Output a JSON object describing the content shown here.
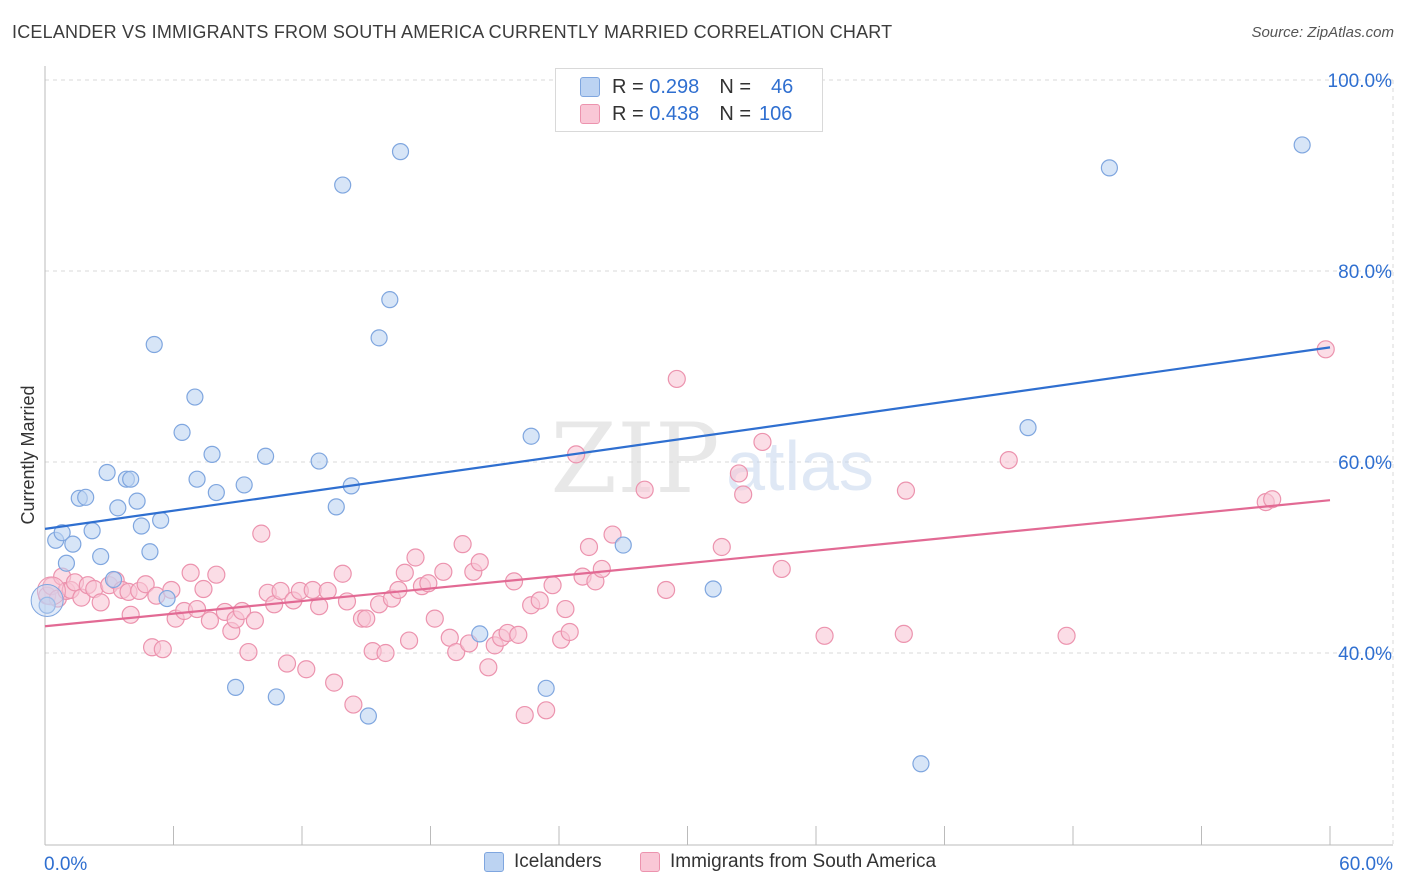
{
  "title": "ICELANDER VS IMMIGRANTS FROM SOUTH AMERICA CURRENTLY MARRIED CORRELATION CHART",
  "source": "Source: ZipAtlas.com",
  "legend": {
    "rows": [
      {
        "r_label": "R =",
        "r_value": "0.298",
        "n_label": "N =",
        "n_value": "46"
      },
      {
        "r_label": "R =",
        "r_value": "0.438",
        "n_label": "N =",
        "n_value": "106"
      }
    ]
  },
  "bottom_legend": {
    "series1": "Icelanders",
    "series2": "Immigrants from South America"
  },
  "colors": {
    "blue": "#2f6fd0",
    "blue_fill": "#bcd3f2",
    "pink": "#e26a94",
    "pink_fill": "#f9c7d6",
    "grid": "#d8d8d8"
  },
  "chart_data": {
    "type": "scatter",
    "title": "ICELANDER VS IMMIGRANTS FROM SOUTH AMERICA CURRENTLY MARRIED CORRELATION CHART",
    "xlabel": "",
    "ylabel": "Currently Married",
    "xlim": [
      0,
      60
    ],
    "ylim": [
      20,
      102
    ],
    "x_tick_labels": [
      "0.0%",
      "60.0%"
    ],
    "y_ticks": [
      40,
      60,
      80,
      100
    ],
    "y_tick_labels": [
      "40.0%",
      "60.0%",
      "80.0%",
      "100.0%"
    ],
    "watermark": "ZIPatlas",
    "series": [
      {
        "name": "Icelanders",
        "color": "#2f6fd0",
        "trend": {
          "x": [
            0,
            60
          ],
          "y": [
            53.0,
            72.0
          ]
        },
        "points": [
          [
            0.1,
            45.0
          ],
          [
            0.5,
            51.8
          ],
          [
            0.8,
            52.6
          ],
          [
            1.0,
            49.4
          ],
          [
            1.3,
            51.4
          ],
          [
            1.6,
            56.2
          ],
          [
            1.9,
            56.3
          ],
          [
            2.2,
            52.8
          ],
          [
            2.6,
            50.1
          ],
          [
            2.9,
            58.9
          ],
          [
            3.2,
            47.7
          ],
          [
            3.4,
            55.2
          ],
          [
            3.8,
            58.2
          ],
          [
            4.0,
            58.2
          ],
          [
            4.3,
            55.9
          ],
          [
            4.5,
            53.3
          ],
          [
            4.9,
            50.6
          ],
          [
            5.1,
            72.3
          ],
          [
            5.4,
            53.9
          ],
          [
            5.7,
            45.7
          ],
          [
            6.4,
            63.1
          ],
          [
            7.0,
            66.8
          ],
          [
            7.1,
            58.2
          ],
          [
            7.8,
            60.8
          ],
          [
            8.0,
            56.8
          ],
          [
            8.9,
            36.4
          ],
          [
            9.3,
            57.6
          ],
          [
            10.3,
            60.6
          ],
          [
            10.8,
            35.4
          ],
          [
            12.8,
            60.1
          ],
          [
            13.6,
            55.3
          ],
          [
            13.9,
            89.0
          ],
          [
            14.3,
            57.5
          ],
          [
            15.1,
            33.4
          ],
          [
            15.6,
            73.0
          ],
          [
            16.1,
            77.0
          ],
          [
            16.6,
            92.5
          ],
          [
            20.3,
            42.0
          ],
          [
            22.7,
            62.7
          ],
          [
            23.4,
            36.3
          ],
          [
            27.0,
            51.3
          ],
          [
            31.2,
            46.7
          ],
          [
            40.9,
            28.4
          ],
          [
            45.9,
            63.6
          ],
          [
            49.7,
            90.8
          ],
          [
            58.7,
            93.2
          ]
        ]
      },
      {
        "name": "Immigrants from South America",
        "color": "#e26a94",
        "trend": {
          "x": [
            0,
            60
          ],
          "y": [
            42.8,
            56.0
          ]
        },
        "points": [
          [
            0.1,
            46.0
          ],
          [
            0.3,
            47.0
          ],
          [
            0.6,
            45.7
          ],
          [
            0.8,
            48.0
          ],
          [
            1.0,
            46.5
          ],
          [
            1.2,
            46.6
          ],
          [
            1.4,
            47.4
          ],
          [
            1.7,
            45.8
          ],
          [
            2.0,
            47.1
          ],
          [
            2.3,
            46.7
          ],
          [
            2.6,
            45.3
          ],
          [
            3.0,
            47.1
          ],
          [
            3.3,
            47.6
          ],
          [
            3.6,
            46.6
          ],
          [
            3.9,
            46.4
          ],
          [
            4.0,
            44.0
          ],
          [
            4.4,
            46.5
          ],
          [
            4.7,
            47.2
          ],
          [
            5.0,
            40.6
          ],
          [
            5.2,
            46.0
          ],
          [
            5.5,
            40.4
          ],
          [
            5.9,
            46.6
          ],
          [
            6.1,
            43.6
          ],
          [
            6.5,
            44.4
          ],
          [
            6.8,
            48.4
          ],
          [
            7.1,
            44.6
          ],
          [
            7.4,
            46.7
          ],
          [
            7.7,
            43.4
          ],
          [
            8.0,
            48.2
          ],
          [
            8.4,
            44.3
          ],
          [
            8.7,
            42.3
          ],
          [
            8.9,
            43.5
          ],
          [
            9.2,
            44.4
          ],
          [
            9.5,
            40.1
          ],
          [
            9.8,
            43.4
          ],
          [
            10.1,
            52.5
          ],
          [
            10.4,
            46.3
          ],
          [
            10.7,
            45.1
          ],
          [
            11.0,
            46.5
          ],
          [
            11.3,
            38.9
          ],
          [
            11.6,
            45.5
          ],
          [
            11.9,
            46.5
          ],
          [
            12.2,
            38.3
          ],
          [
            12.5,
            46.6
          ],
          [
            12.8,
            44.9
          ],
          [
            13.2,
            46.5
          ],
          [
            13.5,
            36.9
          ],
          [
            13.9,
            48.3
          ],
          [
            14.1,
            45.4
          ],
          [
            14.4,
            34.6
          ],
          [
            14.8,
            43.6
          ],
          [
            15.0,
            43.6
          ],
          [
            15.3,
            40.2
          ],
          [
            15.6,
            45.1
          ],
          [
            15.9,
            40.0
          ],
          [
            16.2,
            45.7
          ],
          [
            16.5,
            46.6
          ],
          [
            16.8,
            48.4
          ],
          [
            17.0,
            41.3
          ],
          [
            17.3,
            50.0
          ],
          [
            17.6,
            47.0
          ],
          [
            17.9,
            47.3
          ],
          [
            18.2,
            43.6
          ],
          [
            18.6,
            48.5
          ],
          [
            18.9,
            41.6
          ],
          [
            19.2,
            40.1
          ],
          [
            19.5,
            51.4
          ],
          [
            19.8,
            41.0
          ],
          [
            20.0,
            48.5
          ],
          [
            20.3,
            49.5
          ],
          [
            20.7,
            38.5
          ],
          [
            21.0,
            40.8
          ],
          [
            21.3,
            41.6
          ],
          [
            21.6,
            42.1
          ],
          [
            21.9,
            47.5
          ],
          [
            22.1,
            41.9
          ],
          [
            22.4,
            33.5
          ],
          [
            22.7,
            45.0
          ],
          [
            23.1,
            45.5
          ],
          [
            23.4,
            34.0
          ],
          [
            23.7,
            47.1
          ],
          [
            24.1,
            41.4
          ],
          [
            24.3,
            44.6
          ],
          [
            24.5,
            42.2
          ],
          [
            24.8,
            60.8
          ],
          [
            25.1,
            48.0
          ],
          [
            25.4,
            51.1
          ],
          [
            25.7,
            47.5
          ],
          [
            26.0,
            48.8
          ],
          [
            26.5,
            52.4
          ],
          [
            28.0,
            57.1
          ],
          [
            29.0,
            46.6
          ],
          [
            29.5,
            68.7
          ],
          [
            31.6,
            51.1
          ],
          [
            32.4,
            58.8
          ],
          [
            32.6,
            56.6
          ],
          [
            33.5,
            62.1
          ],
          [
            34.4,
            48.8
          ],
          [
            36.4,
            41.8
          ],
          [
            40.2,
            57.0
          ],
          [
            40.1,
            42.0
          ],
          [
            45.0,
            60.2
          ],
          [
            47.7,
            41.8
          ],
          [
            57.0,
            55.8
          ],
          [
            57.3,
            56.1
          ],
          [
            59.8,
            71.8
          ]
        ]
      }
    ]
  }
}
